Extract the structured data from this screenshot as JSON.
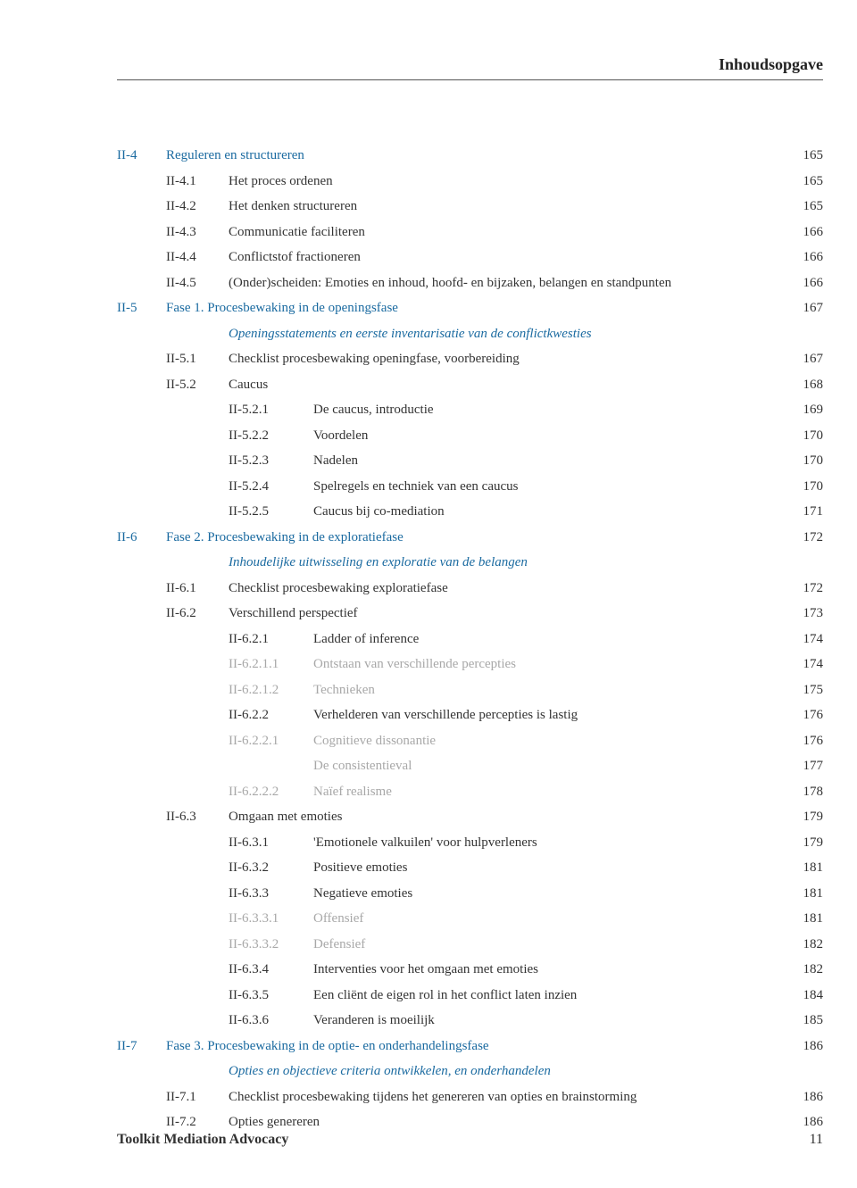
{
  "running_head": "Inhoudsopgave",
  "footer": {
    "left": "Toolkit Mediation Advocacy",
    "page": "11"
  },
  "colors": {
    "link_blue": "#1a6aa0",
    "body_text": "#333333",
    "muted_grey": "#a8a8a8",
    "rule": "#555555",
    "background": "#ffffff"
  },
  "typography": {
    "body_font": "Georgia, serif",
    "body_size_pt": 11,
    "running_head_size_pt": 13,
    "line_height": 1.9
  },
  "rows": [
    {
      "lvl": 0,
      "sec": "II-4",
      "num": "",
      "title": "Reguleren en structureren",
      "page": "165",
      "style": "blue"
    },
    {
      "lvl": 1,
      "sec": "",
      "num": "II-4.1",
      "title": "Het proces ordenen",
      "page": "165",
      "style": ""
    },
    {
      "lvl": 1,
      "sec": "",
      "num": "II-4.2",
      "title": "Het denken structureren",
      "page": "165",
      "style": ""
    },
    {
      "lvl": 1,
      "sec": "",
      "num": "II-4.3",
      "title": "Communicatie faciliteren",
      "page": "166",
      "style": ""
    },
    {
      "lvl": 1,
      "sec": "",
      "num": "II-4.4",
      "title": "Conflictstof fractioneren",
      "page": "166",
      "style": ""
    },
    {
      "lvl": 1,
      "sec": "",
      "num": "II-4.5",
      "title": "(Onder)scheiden: Emoties en inhoud, hoofd- en bijzaken, belangen en standpunten",
      "page": "166",
      "style": "",
      "multiline": true
    },
    {
      "lvl": 0,
      "sec": "II-5",
      "num": "",
      "title": "Fase 1. Procesbewaking in de openingsfase",
      "page": "167",
      "style": "blue"
    },
    {
      "lvl": 1,
      "sec": "",
      "num": "",
      "title": "Openingsstatements en eerste inventarisatie van de conflictkwesties",
      "page": "",
      "style": "italic-blue"
    },
    {
      "lvl": 1,
      "sec": "",
      "num": "II-5.1",
      "title": "Checklist procesbewaking openingfase, voorbereiding",
      "page": "167",
      "style": ""
    },
    {
      "lvl": 1,
      "sec": "",
      "num": "II-5.2",
      "title": "Caucus",
      "page": "168",
      "style": ""
    },
    {
      "lvl": 2,
      "sec": "",
      "num": "II-5.2.1",
      "title": "De caucus, introductie",
      "page": "169",
      "style": ""
    },
    {
      "lvl": 2,
      "sec": "",
      "num": "II-5.2.2",
      "title": "Voordelen",
      "page": "170",
      "style": ""
    },
    {
      "lvl": 2,
      "sec": "",
      "num": "II-5.2.3",
      "title": "Nadelen",
      "page": "170",
      "style": ""
    },
    {
      "lvl": 2,
      "sec": "",
      "num": "II-5.2.4",
      "title": "Spelregels en techniek van een caucus",
      "page": "170",
      "style": ""
    },
    {
      "lvl": 2,
      "sec": "",
      "num": "II-5.2.5",
      "title": "Caucus bij co-mediation",
      "page": "171",
      "style": ""
    },
    {
      "lvl": 0,
      "sec": "II-6",
      "num": "",
      "title": "Fase 2. Procesbewaking in de exploratiefase",
      "page": "172",
      "style": "blue"
    },
    {
      "lvl": 1,
      "sec": "",
      "num": "",
      "title": "Inhoudelijke uitwisseling en exploratie van de belangen",
      "page": "",
      "style": "italic-blue"
    },
    {
      "lvl": 1,
      "sec": "",
      "num": "II-6.1",
      "title": "Checklist procesbewaking exploratiefase",
      "page": "172",
      "style": ""
    },
    {
      "lvl": 1,
      "sec": "",
      "num": "II-6.2",
      "title": "Verschillend perspectief",
      "page": "173",
      "style": ""
    },
    {
      "lvl": 2,
      "sec": "",
      "num": "II-6.2.1",
      "title": "Ladder of inference",
      "page": "174",
      "style": ""
    },
    {
      "lvl": 2,
      "sec": "",
      "num": "II-6.2.1.1",
      "title": "Ontstaan van verschillende percepties",
      "page": "174",
      "style": "grey"
    },
    {
      "lvl": 2,
      "sec": "",
      "num": "II-6.2.1.2",
      "title": "Technieken",
      "page": "175",
      "style": "grey"
    },
    {
      "lvl": 2,
      "sec": "",
      "num": "II-6.2.2",
      "title": "Verhelderen van verschillende percepties is lastig",
      "page": "176",
      "style": ""
    },
    {
      "lvl": 2,
      "sec": "",
      "num": "II-6.2.2.1",
      "title": "Cognitieve dissonantie",
      "page": "176",
      "style": "grey"
    },
    {
      "lvl": 2,
      "sec": "",
      "num": "",
      "title": "De consistentieval",
      "page": "177",
      "style": "grey"
    },
    {
      "lvl": 2,
      "sec": "",
      "num": "II-6.2.2.2",
      "title": "Naïef realisme",
      "page": "178",
      "style": "grey"
    },
    {
      "lvl": 1,
      "sec": "",
      "num": "II-6.3",
      "title": "Omgaan met emoties",
      "page": "179",
      "style": ""
    },
    {
      "lvl": 2,
      "sec": "",
      "num": "II-6.3.1",
      "title": "'Emotionele valkuilen' voor hulpverleners",
      "page": "179",
      "style": ""
    },
    {
      "lvl": 2,
      "sec": "",
      "num": "II-6.3.2",
      "title": "Positieve emoties",
      "page": "181",
      "style": ""
    },
    {
      "lvl": 2,
      "sec": "",
      "num": "II-6.3.3",
      "title": "Negatieve emoties",
      "page": "181",
      "style": ""
    },
    {
      "lvl": 2,
      "sec": "",
      "num": "II-6.3.3.1",
      "title": "Offensief",
      "page": "181",
      "style": "grey"
    },
    {
      "lvl": 2,
      "sec": "",
      "num": "II-6.3.3.2",
      "title": "Defensief",
      "page": "182",
      "style": "grey"
    },
    {
      "lvl": 2,
      "sec": "",
      "num": "II-6.3.4",
      "title": "Interventies voor het omgaan met emoties",
      "page": "182",
      "style": ""
    },
    {
      "lvl": 2,
      "sec": "",
      "num": "II-6.3.5",
      "title": "Een cliënt de eigen rol in het conflict laten inzien",
      "page": "184",
      "style": ""
    },
    {
      "lvl": 2,
      "sec": "",
      "num": "II-6.3.6",
      "title": "Veranderen is moeilijk",
      "page": "185",
      "style": ""
    },
    {
      "lvl": 0,
      "sec": "II-7",
      "num": "",
      "title": "Fase 3. Procesbewaking in de optie- en onderhandelingsfase",
      "page": "186",
      "style": "blue"
    },
    {
      "lvl": 1,
      "sec": "",
      "num": "",
      "title": "Opties en objectieve criteria ontwikkelen, en onderhandelen",
      "page": "",
      "style": "italic-blue"
    },
    {
      "lvl": 1,
      "sec": "",
      "num": "II-7.1",
      "title": "Checklist procesbewaking tijdens het genereren van opties en brainstorming",
      "page": "186",
      "style": ""
    },
    {
      "lvl": 1,
      "sec": "",
      "num": "II-7.2",
      "title": "Opties genereren",
      "page": "186",
      "style": ""
    }
  ]
}
